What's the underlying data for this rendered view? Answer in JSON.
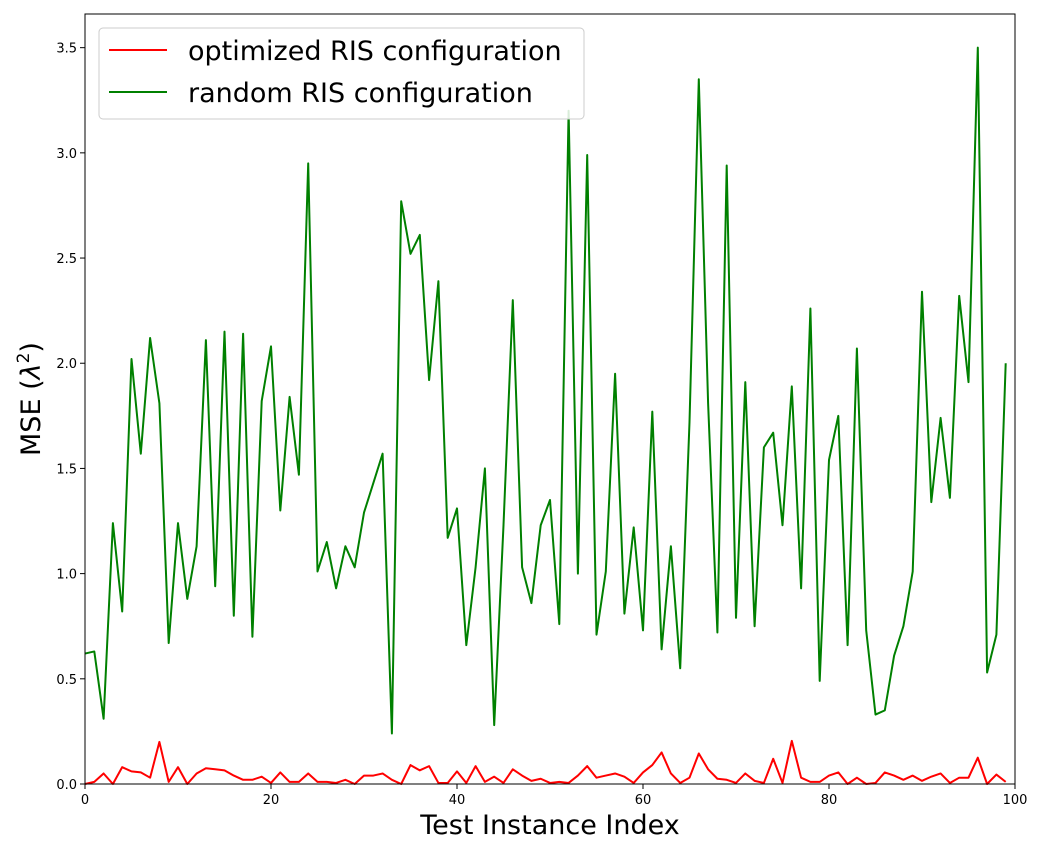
{
  "chart_data": {
    "type": "line",
    "title": "",
    "xlabel": "Test Instance Index",
    "ylabel": "MSE (λ²)",
    "ylabel_main": "MSE (",
    "ylabel_symbol": "λ",
    "ylabel_sup": "2",
    "ylabel_close": ")",
    "xlim": [
      0,
      100
    ],
    "ylim": [
      0,
      3.66
    ],
    "xticks": [
      0,
      20,
      40,
      60,
      80,
      100
    ],
    "yticks": [
      0.0,
      0.5,
      1.0,
      1.5,
      2.0,
      2.5,
      3.0,
      3.5
    ],
    "xtick_labels": [
      "0",
      "20",
      "40",
      "60",
      "80",
      "100"
    ],
    "ytick_labels": [
      "0.0",
      "0.5",
      "1.0",
      "1.5",
      "2.0",
      "2.5",
      "3.0",
      "3.5"
    ],
    "grid": false,
    "legend_position": "top-left",
    "x": [
      0,
      1,
      2,
      3,
      4,
      5,
      6,
      7,
      8,
      9,
      10,
      11,
      12,
      13,
      14,
      15,
      16,
      17,
      18,
      19,
      20,
      21,
      22,
      23,
      24,
      25,
      26,
      27,
      28,
      29,
      30,
      31,
      32,
      33,
      34,
      35,
      36,
      37,
      38,
      39,
      40,
      41,
      42,
      43,
      44,
      45,
      46,
      47,
      48,
      49,
      50,
      51,
      52,
      53,
      54,
      55,
      56,
      57,
      58,
      59,
      60,
      61,
      62,
      63,
      64,
      65,
      66,
      67,
      68,
      69,
      70,
      71,
      72,
      73,
      74,
      75,
      76,
      77,
      78,
      79,
      80,
      81,
      82,
      83,
      84,
      85,
      86,
      87,
      88,
      89,
      90,
      91,
      92,
      93,
      94,
      95,
      96,
      97,
      98,
      99
    ],
    "series": [
      {
        "name": "optimized RIS configuration",
        "color": "#ff0000",
        "values": [
          0.0,
          0.01,
          0.05,
          0.0,
          0.08,
          0.06,
          0.055,
          0.03,
          0.2,
          0.01,
          0.08,
          0.0,
          0.05,
          0.075,
          0.07,
          0.065,
          0.04,
          0.02,
          0.02,
          0.035,
          0.005,
          0.055,
          0.01,
          0.01,
          0.05,
          0.01,
          0.01,
          0.005,
          0.02,
          0.0,
          0.04,
          0.04,
          0.05,
          0.02,
          0.0,
          0.09,
          0.065,
          0.085,
          0.005,
          0.005,
          0.06,
          0.005,
          0.085,
          0.01,
          0.035,
          0.005,
          0.07,
          0.04,
          0.015,
          0.025,
          0.005,
          0.01,
          0.005,
          0.04,
          0.085,
          0.03,
          0.04,
          0.05,
          0.035,
          0.005,
          0.055,
          0.09,
          0.15,
          0.05,
          0.005,
          0.03,
          0.145,
          0.07,
          0.025,
          0.02,
          0.005,
          0.05,
          0.015,
          0.005,
          0.12,
          0.005,
          0.205,
          0.03,
          0.01,
          0.01,
          0.04,
          0.055,
          0.0,
          0.03,
          0.0,
          0.005,
          0.055,
          0.04,
          0.02,
          0.04,
          0.015,
          0.035,
          0.05,
          0.005,
          0.03,
          0.03,
          0.125,
          0.0,
          0.045,
          0.01
        ]
      },
      {
        "name": "random RIS configuration",
        "color": "#008000",
        "values": [
          0.62,
          0.63,
          0.31,
          1.24,
          0.82,
          2.02,
          1.57,
          2.12,
          1.81,
          0.67,
          1.24,
          0.88,
          1.13,
          2.11,
          0.94,
          2.15,
          0.8,
          2.14,
          0.7,
          1.82,
          2.08,
          1.3,
          1.84,
          1.47,
          2.95,
          1.01,
          1.15,
          0.93,
          1.13,
          1.03,
          1.29,
          1.43,
          1.57,
          0.24,
          2.77,
          2.52,
          2.61,
          1.92,
          2.39,
          1.17,
          1.31,
          0.66,
          1.03,
          1.5,
          0.28,
          1.23,
          2.3,
          1.03,
          0.86,
          1.23,
          1.35,
          0.76,
          3.2,
          1.0,
          2.99,
          0.71,
          1.01,
          1.95,
          0.81,
          1.22,
          0.73,
          1.77,
          0.64,
          1.13,
          0.55,
          1.72,
          3.35,
          1.81,
          0.72,
          2.94,
          0.79,
          1.91,
          0.75,
          1.6,
          1.67,
          1.23,
          1.89,
          0.93,
          2.26,
          0.49,
          1.54,
          1.75,
          0.66,
          2.07,
          0.73,
          0.33,
          0.35,
          0.61,
          0.75,
          1.01,
          2.34,
          1.34,
          1.74,
          1.36,
          2.32,
          1.91,
          3.5,
          0.53,
          0.71,
          2.0
        ]
      }
    ]
  }
}
